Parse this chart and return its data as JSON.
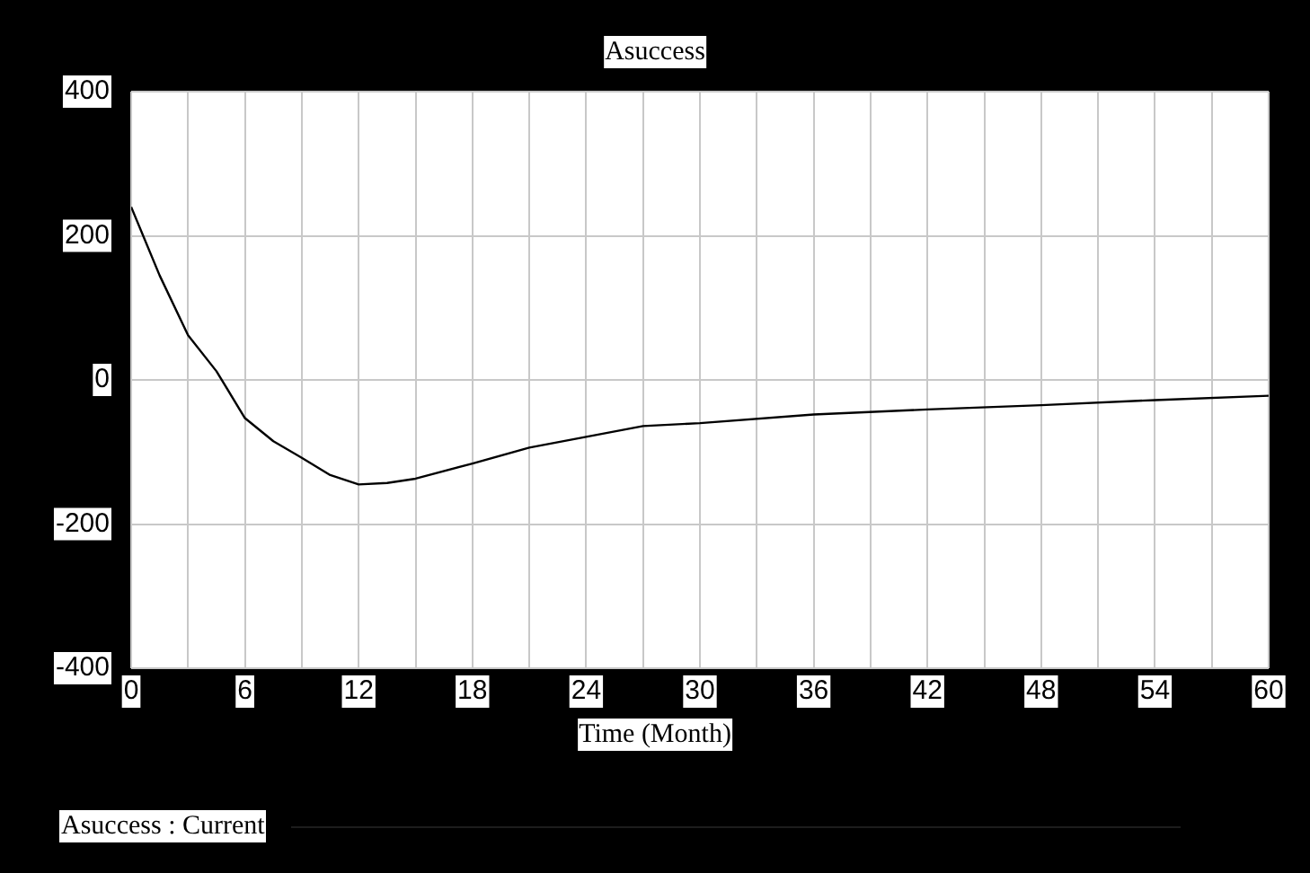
{
  "chart_data": {
    "type": "line",
    "title": "Asuccess",
    "xlabel": "Time (Month)",
    "x": [
      0,
      1.5,
      3,
      4.5,
      6,
      7.5,
      9,
      10.5,
      12,
      13.5,
      15,
      18,
      21,
      24,
      27,
      30,
      36,
      42,
      48,
      54,
      60
    ],
    "series": [
      {
        "name": "Asuccess : Current",
        "color": "#000000",
        "values": [
          240,
          145,
          62,
          12,
          -53,
          -85,
          -108,
          -132,
          -145,
          -143,
          -137,
          -116,
          -94,
          -79,
          -64,
          -60,
          -48,
          -41,
          -35,
          -28,
          -22
        ]
      }
    ],
    "xlim": [
      0,
      60
    ],
    "xticks": [
      0,
      {
        "value": 3,
        "label": null
      },
      6,
      {
        "value": 9,
        "label": null
      },
      12,
      {
        "value": 15,
        "label": null
      },
      18,
      {
        "value": 21,
        "label": null
      },
      24,
      {
        "value": 27,
        "label": null
      },
      30,
      {
        "value": 33,
        "label": null
      },
      36,
      {
        "value": 39,
        "label": null
      },
      42,
      {
        "value": 45,
        "label": null
      },
      48,
      {
        "value": 51,
        "label": null
      },
      54,
      {
        "value": 57,
        "label": null
      },
      60
    ],
    "ylim": [
      -400,
      400
    ],
    "yticks": [
      -400,
      -200,
      0,
      200,
      400
    ],
    "grid": true,
    "legend": "bottom",
    "marker": "none",
    "line_style": "solid"
  }
}
